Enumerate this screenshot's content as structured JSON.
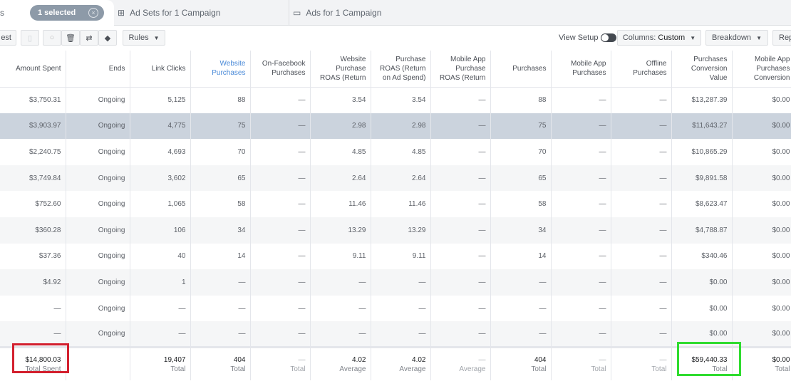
{
  "tabs": {
    "campaigns_fragment": "s",
    "selected_pill": "1 selected",
    "ad_sets": "Ad Sets for 1 Campaign",
    "ads": "Ads for 1 Campaign"
  },
  "toolbar": {
    "test_fragment": "est",
    "rules": "Rules",
    "view_setup": "View Setup",
    "columns_label": "Columns: ",
    "columns_value": "Custom",
    "breakdown": "Breakdown",
    "reports_fragment": "Rep"
  },
  "columns": [
    "Amount Spent",
    "Ends",
    "Link Clicks",
    "Website Purchases",
    "On-Facebook Purchases",
    "Website Purchase ROAS (Return",
    "Purchase ROAS (Return on Ad Spend)",
    "Mobile App Purchase ROAS (Return",
    "Purchases",
    "Mobile App Purchases",
    "Offline Purchases",
    "Purchases Conversion Value",
    "Mobile App Purchases Conversion"
  ],
  "sorted_column": 3,
  "highlighted_row": 1,
  "rows": [
    [
      "$3,750.31",
      "Ongoing",
      "5,125",
      "88",
      "—",
      "3.54",
      "3.54",
      "—",
      "88",
      "—",
      "—",
      "$13,287.39",
      "$0.00"
    ],
    [
      "$3,903.97",
      "Ongoing",
      "4,775",
      "75",
      "—",
      "2.98",
      "2.98",
      "—",
      "75",
      "—",
      "—",
      "$11,643.27",
      "$0.00"
    ],
    [
      "$2,240.75",
      "Ongoing",
      "4,693",
      "70",
      "—",
      "4.85",
      "4.85",
      "—",
      "70",
      "—",
      "—",
      "$10,865.29",
      "$0.00"
    ],
    [
      "$3,749.84",
      "Ongoing",
      "3,602",
      "65",
      "—",
      "2.64",
      "2.64",
      "—",
      "65",
      "—",
      "—",
      "$9,891.58",
      "$0.00"
    ],
    [
      "$752.60",
      "Ongoing",
      "1,065",
      "58",
      "—",
      "11.46",
      "11.46",
      "—",
      "58",
      "—",
      "—",
      "$8,623.47",
      "$0.00"
    ],
    [
      "$360.28",
      "Ongoing",
      "106",
      "34",
      "—",
      "13.29",
      "13.29",
      "—",
      "34",
      "—",
      "—",
      "$4,788.87",
      "$0.00"
    ],
    [
      "$37.36",
      "Ongoing",
      "40",
      "14",
      "—",
      "9.11",
      "9.11",
      "—",
      "14",
      "—",
      "—",
      "$340.46",
      "$0.00"
    ],
    [
      "$4.92",
      "Ongoing",
      "1",
      "—",
      "—",
      "—",
      "—",
      "—",
      "—",
      "—",
      "—",
      "$0.00",
      "$0.00"
    ],
    [
      "—",
      "Ongoing",
      "—",
      "—",
      "—",
      "—",
      "—",
      "—",
      "—",
      "—",
      "—",
      "$0.00",
      "$0.00"
    ],
    [
      "—",
      "Ongoing",
      "—",
      "—",
      "—",
      "—",
      "—",
      "—",
      "—",
      "—",
      "—",
      "$0.00",
      "$0.00"
    ]
  ],
  "footer": [
    {
      "value": "$14,800.03",
      "label": "Total Spent"
    },
    {
      "value": "",
      "label": ""
    },
    {
      "value": "19,407",
      "label": "Total"
    },
    {
      "value": "404",
      "label": "Total"
    },
    {
      "value": "—",
      "label": "Total",
      "dim": true
    },
    {
      "value": "4.02",
      "label": "Average"
    },
    {
      "value": "4.02",
      "label": "Average"
    },
    {
      "value": "—",
      "label": "Average",
      "dim": true
    },
    {
      "value": "404",
      "label": "Total"
    },
    {
      "value": "—",
      "label": "Total",
      "dim": true
    },
    {
      "value": "—",
      "label": "Total",
      "dim": true
    },
    {
      "value": "$59,440.33",
      "label": "Total"
    },
    {
      "value": "$0.00",
      "label": "Total"
    }
  ]
}
